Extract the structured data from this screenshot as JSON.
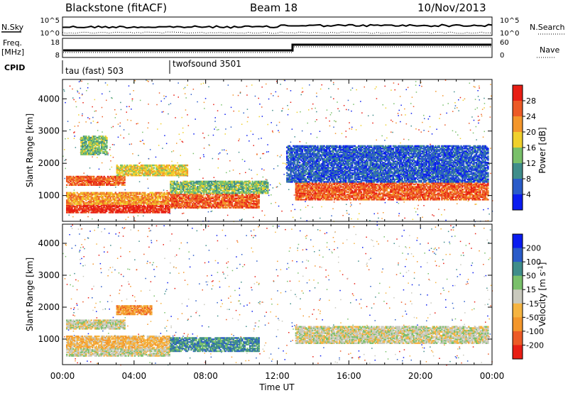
{
  "header": {
    "station": "Blackstone (fitACF)",
    "beam": "Beam 18",
    "date": "10/Nov/2013"
  },
  "top_panels": {
    "nsky_label": "N.Sky",
    "nsearch_label": "N.Search",
    "noise_ticks_left": [
      "10^5",
      "10^0"
    ],
    "noise_ticks_right": [
      "10^5",
      "10^0"
    ],
    "freq_label_1": "Freq.",
    "freq_label_2": "[MHz]",
    "freq_ticks": [
      "18",
      "8"
    ],
    "nave_label": "Nave",
    "nave_ticks": [
      "60",
      "0"
    ],
    "cpid_label": "CPID",
    "cpid_segments": [
      {
        "name": "tau (fast) 503",
        "start_hour": 0
      },
      {
        "name": "twofsound 3501",
        "start_hour": 6
      }
    ]
  },
  "chart_data": [
    {
      "type": "heatmap",
      "panel": "power",
      "ylabel": "Slant Range [km]",
      "yticks": [
        1000,
        2000,
        3000,
        4000
      ],
      "ylim": [
        200,
        4600
      ],
      "xlim": [
        0,
        24
      ],
      "colorbar_label": "Power [dB]",
      "colorbar_ticks": [
        4,
        8,
        12,
        16,
        20,
        24,
        28
      ],
      "colorbar_colors": [
        "#0a1cf0",
        "#2a5bc9",
        "#3f8d8a",
        "#79c06a",
        "#f0d02c",
        "#f3962b",
        "#ec5a26",
        "#e81e14"
      ],
      "regions": [
        {
          "t0": 0.2,
          "t1": 6,
          "r0": 500,
          "r1": 760,
          "level": 7
        },
        {
          "t0": 0.2,
          "t1": 6,
          "r0": 760,
          "r1": 1150,
          "level": 5
        },
        {
          "t0": 0.2,
          "t1": 3.5,
          "r0": 1350,
          "r1": 1650,
          "level": 6
        },
        {
          "t0": 1,
          "t1": 2.5,
          "r0": 2300,
          "r1": 2900,
          "level": 3
        },
        {
          "t0": 3,
          "t1": 7,
          "r0": 1650,
          "r1": 2000,
          "level": 4
        },
        {
          "t0": 6,
          "t1": 11,
          "r0": 650,
          "r1": 1100,
          "level": 6
        },
        {
          "t0": 6,
          "t1": 11.5,
          "r0": 1100,
          "r1": 1500,
          "level": 3
        },
        {
          "t0": 13,
          "t1": 23.8,
          "r0": 900,
          "r1": 1450,
          "level": 6
        },
        {
          "t0": 12.5,
          "t1": 23.8,
          "r0": 1450,
          "r1": 2600,
          "level": 1
        }
      ]
    },
    {
      "type": "heatmap",
      "panel": "velocity",
      "ylabel": "Slant Range [km]",
      "xlabel": "Time UT",
      "xticks": [
        "00:00",
        "04:00",
        "08:00",
        "12:00",
        "16:00",
        "20:00",
        "00:00"
      ],
      "yticks": [
        1000,
        2000,
        3000,
        4000
      ],
      "ylim": [
        200,
        4600
      ],
      "xlim": [
        0,
        24
      ],
      "colorbar_label": "Velocity [m s",
      "colorbar_label_exponent": "-1",
      "colorbar_label_close": "]",
      "colorbar_ticks": [
        -200,
        -100,
        -50,
        -15,
        15,
        50,
        100,
        200
      ],
      "colorbar_colors": [
        "#e81e14",
        "#ec5a26",
        "#f3962b",
        "#f5b441",
        "#c9c9bd",
        "#79c06a",
        "#3f8d8a",
        "#2a5bc9",
        "#0a1cf0"
      ],
      "regions": [
        {
          "t0": 0.2,
          "t1": 6,
          "r0": 500,
          "r1": 760,
          "level": 4
        },
        {
          "t0": 0.2,
          "t1": 6,
          "r0": 760,
          "r1": 1150,
          "level": 3
        },
        {
          "t0": 0.2,
          "t1": 3.5,
          "r0": 1350,
          "r1": 1650,
          "level": 4
        },
        {
          "t0": 3,
          "t1": 5,
          "r0": 1800,
          "r1": 2100,
          "level": 2
        },
        {
          "t0": 6,
          "t1": 11,
          "r0": 650,
          "r1": 1100,
          "level": 6
        },
        {
          "t0": 13,
          "t1": 23.8,
          "r0": 900,
          "r1": 1450,
          "level": 4
        }
      ]
    }
  ]
}
